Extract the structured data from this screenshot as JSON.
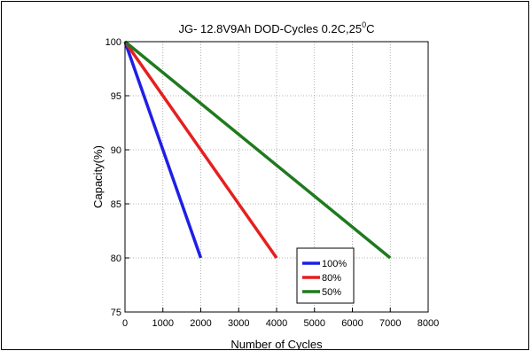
{
  "chart_data": {
    "type": "line",
    "title": "JG- 12.8V9Ah DOD-Cycles  0.2C,25",
    "title_superscript": "0",
    "title_suffix": "C",
    "xlabel": "Number of Cycles",
    "ylabel": "Capacity(%)",
    "xlim": [
      0,
      8000
    ],
    "ylim": [
      75,
      100
    ],
    "xticks": [
      0,
      1000,
      2000,
      3000,
      4000,
      5000,
      6000,
      7000,
      8000
    ],
    "yticks": [
      75,
      80,
      85,
      90,
      95,
      100
    ],
    "grid": true,
    "legend_position": "bottom-right",
    "series": [
      {
        "name": "100%",
        "color": "#1f1fe6",
        "x": [
          0,
          2000
        ],
        "y": [
          100,
          80
        ]
      },
      {
        "name": "80%",
        "color": "#e61f1f",
        "x": [
          0,
          4000
        ],
        "y": [
          100,
          80
        ]
      },
      {
        "name": "50%",
        "color": "#1f7a1f",
        "x": [
          0,
          7000
        ],
        "y": [
          100,
          80
        ]
      }
    ]
  }
}
